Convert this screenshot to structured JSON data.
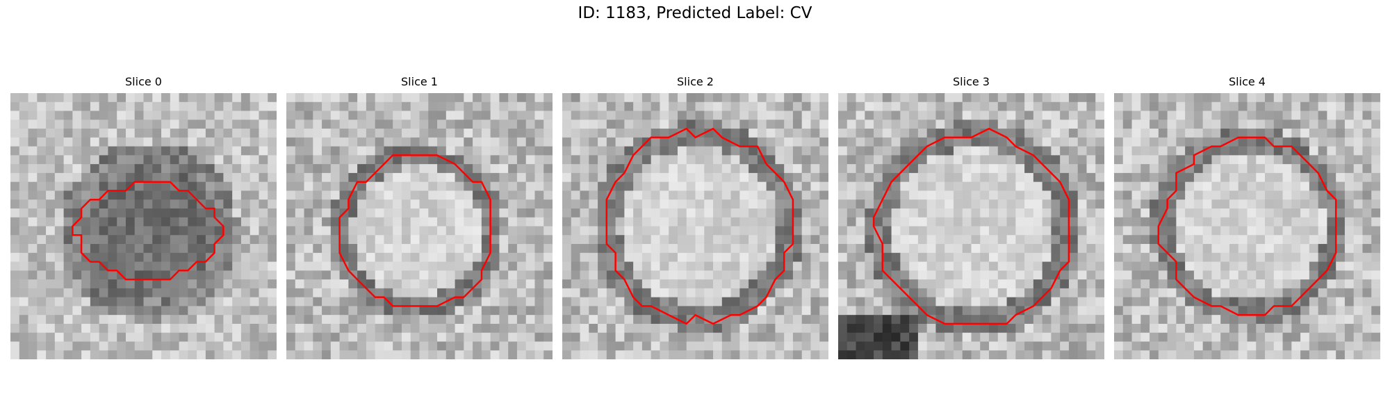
{
  "figure": {
    "title": "ID: 1183, Predicted Label: CV"
  },
  "panels": [
    {
      "title": "Slice 0",
      "center": [
        0.52,
        0.52
      ],
      "radius": 0.23,
      "contrast": "dark",
      "outline_color": "#ff0000"
    },
    {
      "title": "Slice 1",
      "center": [
        0.49,
        0.52
      ],
      "radius": 0.29,
      "contrast": "light",
      "outline_color": "#ff0000"
    },
    {
      "title": "Slice 2",
      "center": [
        0.51,
        0.5
      ],
      "radius": 0.35,
      "contrast": "light",
      "outline_color": "#ff0000"
    },
    {
      "title": "Slice 3",
      "center": [
        0.51,
        0.51
      ],
      "radius": 0.36,
      "contrast": "light",
      "outline_color": "#ff0000"
    },
    {
      "title": "Slice 4",
      "center": [
        0.51,
        0.5
      ],
      "radius": 0.33,
      "contrast": "light",
      "outline_color": "#ff0000"
    }
  ]
}
